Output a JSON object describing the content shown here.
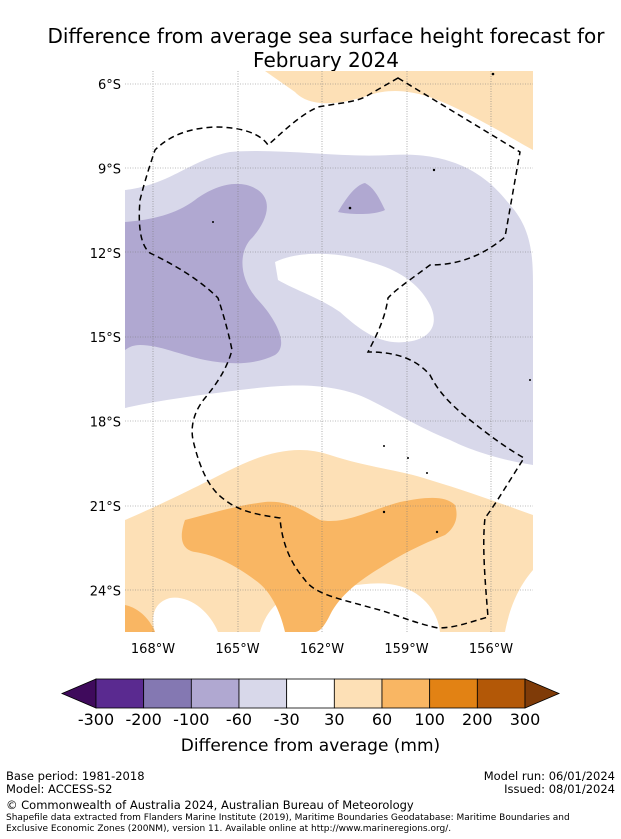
{
  "title_lines": [
    "Difference from average sea surface height forecast for",
    "February 2024"
  ],
  "map": {
    "lat_labels": [
      "6°S",
      "9°S",
      "12°S",
      "15°S",
      "18°S",
      "21°S",
      "24°S"
    ],
    "lon_labels": [
      "168°W",
      "165°W",
      "162°W",
      "159°W",
      "156°W"
    ],
    "lat_values": [
      -6,
      -9,
      -12,
      -15,
      -18,
      -21,
      -24
    ],
    "lon_values": [
      -168,
      -165,
      -162,
      -159,
      -156
    ],
    "grid": true,
    "boundary_style": "dashed"
  },
  "colorbar": {
    "label": "Difference from average (mm)",
    "ticks": [
      "-300",
      "-200",
      "-100",
      "-60",
      "-30",
      "30",
      "60",
      "100",
      "200",
      "300"
    ],
    "colors": [
      "#3f0a5c",
      "#5a2a90",
      "#8478b2",
      "#b0a8d1",
      "#d8d8ea",
      "#ffffff",
      "#fde0b6",
      "#f9b663",
      "#e28214",
      "#b35807",
      "#7f3b08"
    ]
  },
  "footer": {
    "base_period": "Base period: 1981-2018",
    "model": "Model: ACCESS-S2",
    "model_run": "Model run: 06/01/2024",
    "issued": "Issued: 08/01/2024",
    "copyright": "© Commonwealth of Australia 2024, Australian Bureau of Meteorology",
    "shapefile_note": "Shapefile data extracted from Flanders Marine Institute (2019), Maritime Boundaries Geodatabase: Maritime Boundaries and Exclusive Economic Zones (200NM), version 11. Available online at http://www.marineregions.org/."
  }
}
